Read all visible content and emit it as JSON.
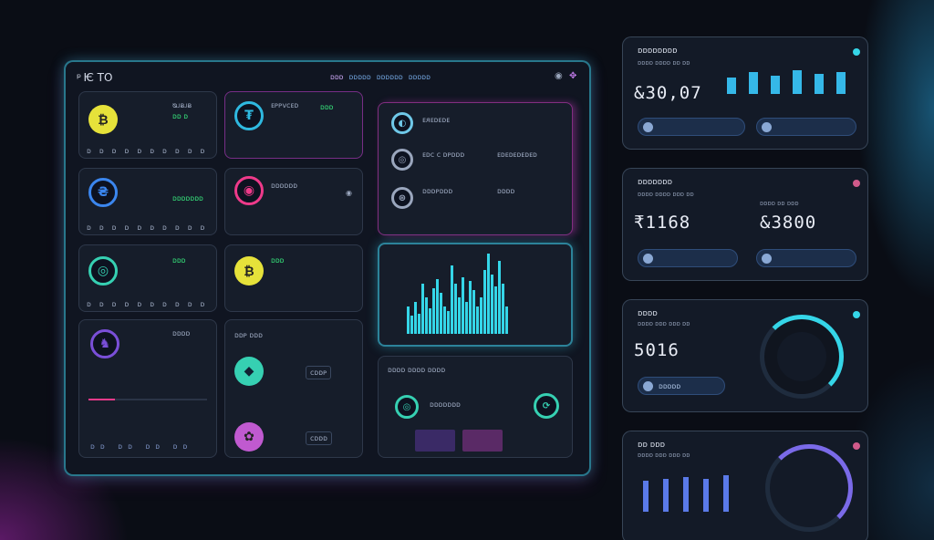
{
  "main": {
    "title": "ᵖ Ѥ TO",
    "tabs": [
      "ᴅᴅᴅ",
      "ᴅᴅᴅᴅᴅ",
      "ᴅᴅᴅᴅᴅᴅ",
      "ᴅᴅᴅᴅᴅ"
    ]
  },
  "coins": [
    {
      "sym": "₿",
      "color": "#e6e23a",
      "stat": "ᴓᴊᴃᴊᴃ"
    },
    {
      "sym": "₴",
      "color": "#3b86ee",
      "stat": "ᴅᴅᴅᴅᴅᴅᴅ"
    },
    {
      "sym": "◎",
      "color": "#36d0b2",
      "stat": "ᴅᴅᴅ"
    },
    {
      "sym": "♞",
      "color": "#7a4fd8",
      "stat": "ᴅᴅᴅᴅ"
    }
  ],
  "coins2": [
    {
      "sym": "₮",
      "color": "#2fb9e0",
      "title": "ᴇᴘᴘᴠᴄᴇᴅ"
    },
    {
      "sym": "◉",
      "color": "#ee3a8a",
      "title": "ᴅᴅᴅᴅᴅᴅ"
    },
    {
      "sym": "₿",
      "color": "#e6e23a",
      "title": "ᴅᴅᴅ"
    }
  ],
  "list": {
    "title": "ᴇᴙᴇᴅᴇᴅᴇ",
    "rows": [
      {
        "name": "ᴇᴅᴄ ᴄ ᴅᴘᴅᴅᴅ",
        "val": "ᴇᴅᴇᴅᴇᴅᴇᴅᴇᴅ"
      },
      {
        "name": "ᴅᴅᴅᴘᴅᴅᴅ",
        "val": "ᴅᴅᴅᴅ"
      }
    ]
  },
  "chart": {
    "values": [
      30,
      20,
      35,
      22,
      55,
      40,
      28,
      50,
      60,
      45,
      30,
      25,
      75,
      55,
      40,
      62,
      35,
      58,
      48,
      30,
      40,
      70,
      88,
      65,
      52,
      80,
      55,
      30
    ]
  },
  "exchange": {
    "title": "ᴅᴅᴘ ᴅᴅᴅ",
    "btnA": "ᴄᴅᴅᴘ",
    "btnB": "ᴄᴅᴅᴅ"
  },
  "tx": {
    "title": "ᴅᴅᴅᴅ ᴅᴅᴅᴅ ᴅᴅᴅᴅ",
    "row": "ᴅᴅᴅᴅᴅᴅᴅ"
  },
  "right": [
    {
      "title": "ᴅᴅᴅᴅᴅᴅᴅᴅ",
      "sub": "ᴅᴅᴅᴅ ᴅᴅᴅᴅ ᴅᴅ ᴅᴅ",
      "value": "&30,07"
    },
    {
      "title": "ᴅᴅᴅᴅᴅᴅᴅ",
      "sub": "ᴅᴅᴅᴅ ᴅᴅᴅᴅ ᴅᴅᴅ ᴅᴅ",
      "value": "₹1168",
      "value2": "&3800",
      "sub2": "ᴅᴅᴅᴅ ᴅᴅ ᴅᴅᴅ"
    },
    {
      "title": "ᴅᴅᴅᴅ",
      "sub": "ᴅᴅᴅᴅ ᴅᴅᴅ ᴅᴅᴅ ᴅᴅ",
      "value": "5016",
      "pill": "ᴅᴅᴅᴅᴅ"
    },
    {
      "title": "ᴅᴅ ᴅᴅᴅ",
      "sub": "ᴅᴅᴅᴅ ᴅᴅᴅ ᴅᴅᴅ ᴅᴅ"
    }
  ],
  "colors": {
    "accent": "#35d6e8",
    "pink": "#ee3a8a",
    "green": "#36e07a"
  }
}
